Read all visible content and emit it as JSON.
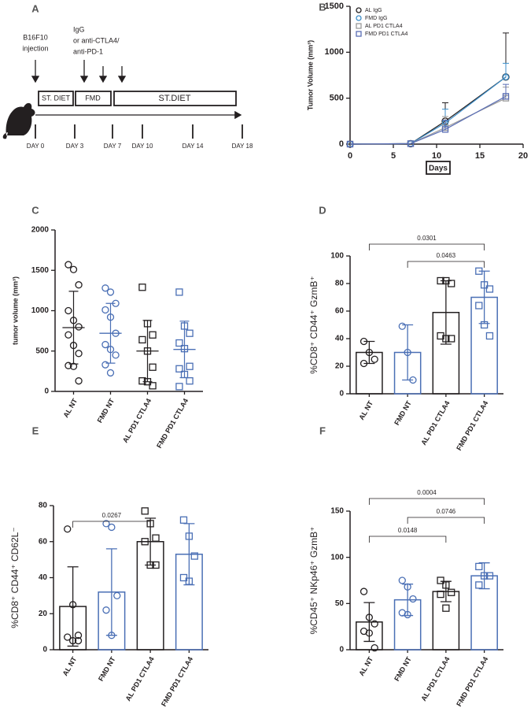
{
  "diagram": {
    "panel_label": "A",
    "injection": [
      "B16F10",
      "injection"
    ],
    "treatment": [
      "IgG",
      "or anti-CTLA4/",
      "anti-PD-1"
    ],
    "phases": [
      "ST. DIET",
      "FMD",
      "ST.DIET"
    ],
    "days": [
      "DAY 0",
      "DAY 3",
      "DAY 7",
      "DAY 10",
      "DAY 14",
      "DAY 18"
    ]
  },
  "chart_data": [
    {
      "type": "line",
      "panel_label": "B",
      "y_label": "Tumor Volume (mm³)",
      "x_label": "Days",
      "x": [
        0,
        7,
        11,
        18
      ],
      "xlim": [
        0,
        20
      ],
      "xticks": [
        0,
        5,
        10,
        15,
        20
      ],
      "ylim": [
        0,
        1500
      ],
      "yticks": [
        0,
        500,
        1000,
        1500
      ],
      "series": [
        {
          "name": "AL IgG",
          "color": "#231f20",
          "marker": "circle",
          "values": [
            0,
            5,
            250,
            730
          ],
          "errors": [
            0,
            0,
            200,
            480
          ]
        },
        {
          "name": "FMD IgG",
          "color": "#3d8ec9",
          "marker": "circle",
          "values": [
            0,
            5,
            230,
            730
          ],
          "errors": [
            0,
            0,
            150,
            150
          ]
        },
        {
          "name": "AL PD1 CTLA4",
          "color": "#9a9a9a",
          "marker": "square",
          "values": [
            0,
            5,
            180,
            500
          ],
          "errors": [
            0,
            0,
            120,
            120
          ]
        },
        {
          "name": "FMD PD1 CTLA4",
          "color": "#5a6eb5",
          "marker": "square",
          "values": [
            0,
            5,
            160,
            520
          ],
          "errors": [
            0,
            0,
            100,
            130
          ]
        }
      ]
    },
    {
      "type": "dot",
      "panel_label": "C",
      "y_label": "tumor volume (mm³)",
      "categories": [
        "AL NT",
        "FMD NT",
        "AL PD1 CTLA4",
        "FMD PD1 CTLA4"
      ],
      "colors": [
        "#231f20",
        "#4a6fb5",
        "#231f20",
        "#4a6fb5"
      ],
      "markers": [
        "circle",
        "circle",
        "square",
        "square"
      ],
      "ylim": [
        0,
        2000
      ],
      "yticks": [
        0,
        500,
        1000,
        1500,
        2000
      ],
      "means": [
        790,
        720,
        500,
        520
      ],
      "errors": [
        450,
        370,
        380,
        350
      ],
      "points": [
        [
          1570,
          1510,
          1320,
          1000,
          880,
          800,
          700,
          570,
          470,
          320,
          310,
          130
        ],
        [
          1280,
          1230,
          1090,
          1010,
          920,
          720,
          580,
          520,
          450,
          330,
          230
        ],
        [
          1290,
          840,
          700,
          640,
          500,
          300,
          130,
          120,
          70
        ],
        [
          1230,
          810,
          720,
          600,
          530,
          310,
          280,
          210,
          130,
          60
        ]
      ]
    },
    {
      "type": "bar",
      "panel_label": "D",
      "y_label": "%CD8⁺ CD44⁺ GzmB⁺",
      "categories": [
        "AL NT",
        "FMD NT",
        "AL PD1 CTLA4",
        "FMD PD1 CTLA4"
      ],
      "colors": [
        "#231f20",
        "#4a6fb5",
        "#231f20",
        "#4a6fb5"
      ],
      "markers": [
        "circle",
        "circle",
        "square",
        "square"
      ],
      "ylim": [
        0,
        100
      ],
      "yticks": [
        0,
        20,
        40,
        60,
        80,
        100
      ],
      "values": [
        30,
        30,
        59,
        70
      ],
      "errors": [
        8,
        20,
        23,
        19
      ],
      "points": [
        [
          38,
          30,
          25,
          22
        ],
        [
          49,
          30,
          10
        ],
        [
          82,
          82,
          80,
          42,
          40,
          40
        ],
        [
          89,
          79,
          76,
          64,
          50,
          42
        ]
      ],
      "annotations": [
        {
          "label": "0.0301",
          "between": [
            "AL NT",
            "FMD PD1 CTLA4"
          ]
        },
        {
          "label": "0.0463",
          "between": [
            "FMD NT",
            "FMD PD1 CTLA4"
          ]
        }
      ]
    },
    {
      "type": "bar",
      "panel_label": "E",
      "y_label": "%CD8⁺ CD44⁺ CD62L⁻",
      "categories": [
        "AL NT",
        "FMD NT",
        "AL PD1 CTLA4",
        "FMD PD1 CTLA4"
      ],
      "colors": [
        "#231f20",
        "#4a6fb5",
        "#231f20",
        "#4a6fb5"
      ],
      "markers": [
        "circle",
        "circle",
        "square",
        "square"
      ],
      "ylim": [
        0,
        80
      ],
      "yticks": [
        0,
        20,
        40,
        60,
        80
      ],
      "values": [
        24,
        32,
        60,
        53
      ],
      "errors": [
        22,
        24,
        13,
        17
      ],
      "points": [
        [
          67,
          25,
          8,
          7,
          5,
          5
        ],
        [
          70,
          68,
          30,
          22,
          8
        ],
        [
          77,
          70,
          62,
          60,
          47,
          47
        ],
        [
          72,
          63,
          52,
          40,
          38
        ]
      ],
      "annotations": [
        {
          "label": "0.0267",
          "between": [
            "AL NT",
            "AL PD1 CTLA4"
          ]
        }
      ]
    },
    {
      "type": "bar",
      "panel_label": "F",
      "y_label": "%CD45⁺ NKp46⁺ GzmB⁺",
      "categories": [
        "AL NT",
        "FMD NT",
        "AL PD1 CTLA4",
        "FMD PD1 CTLA4"
      ],
      "colors": [
        "#231f20",
        "#4a6fb5",
        "#231f20",
        "#4a6fb5"
      ],
      "markers": [
        "circle",
        "circle",
        "square",
        "square"
      ],
      "ylim": [
        0,
        150
      ],
      "yticks": [
        0,
        50,
        100,
        150
      ],
      "values": [
        30,
        54,
        63,
        80
      ],
      "errors": [
        21,
        17,
        11,
        14
      ],
      "points": [
        [
          63,
          35,
          28,
          20,
          18,
          2
        ],
        [
          75,
          68,
          55,
          40,
          38
        ],
        [
          75,
          70,
          62,
          60,
          45
        ],
        [
          90,
          80,
          80,
          70
        ]
      ],
      "annotations": [
        {
          "label": "0.0004",
          "between": [
            "AL NT",
            "FMD PD1 CTLA4"
          ]
        },
        {
          "label": "0.0746",
          "between": [
            "FMD NT",
            "FMD PD1 CTLA4"
          ]
        },
        {
          "label": "0.0148",
          "between": [
            "AL NT",
            "AL PD1 CTLA4"
          ]
        }
      ]
    }
  ]
}
